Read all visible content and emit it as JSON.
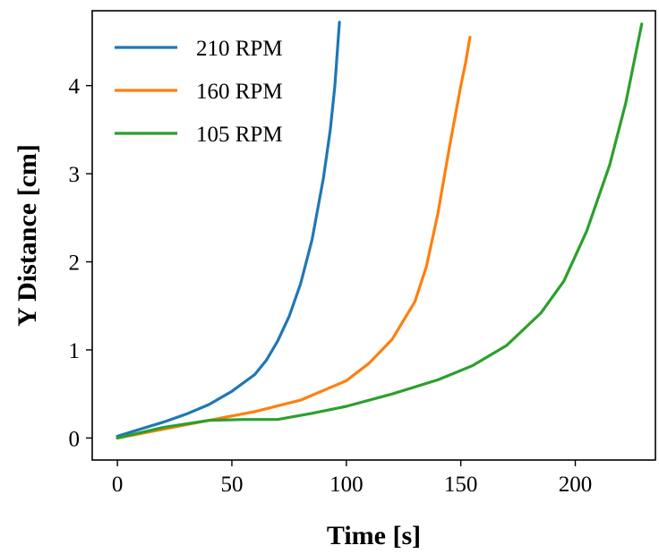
{
  "chart_data": {
    "type": "line",
    "title": "",
    "xlabel": "Time [s]",
    "ylabel": "Y Distance [cm]",
    "xlim": [
      -11,
      235
    ],
    "ylim": [
      -0.25,
      4.85
    ],
    "xticks": [
      0,
      50,
      100,
      150,
      200
    ],
    "yticks": [
      0,
      1,
      2,
      3,
      4
    ],
    "grid": false,
    "legend": "top-left",
    "series": [
      {
        "name": "210 RPM",
        "color": "#1f77b4",
        "x": [
          0,
          10,
          20,
          30,
          40,
          50,
          60,
          65,
          70,
          75,
          80,
          85,
          90,
          93,
          95,
          97
        ],
        "y": [
          0.02,
          0.1,
          0.18,
          0.27,
          0.38,
          0.53,
          0.72,
          0.88,
          1.1,
          1.38,
          1.75,
          2.25,
          2.95,
          3.5,
          4.0,
          4.72
        ]
      },
      {
        "name": "160 RPM",
        "color": "#ff7f0e",
        "x": [
          0,
          20,
          40,
          60,
          80,
          100,
          110,
          120,
          130,
          135,
          140,
          145,
          150,
          152,
          154
        ],
        "y": [
          0.0,
          0.1,
          0.2,
          0.3,
          0.43,
          0.65,
          0.85,
          1.12,
          1.55,
          1.95,
          2.55,
          3.3,
          4.0,
          4.25,
          4.55
        ]
      },
      {
        "name": "105 RPM",
        "color": "#2ca02c",
        "x": [
          0,
          20,
          40,
          55,
          70,
          85,
          100,
          120,
          140,
          155,
          170,
          185,
          195,
          205,
          215,
          222,
          229
        ],
        "y": [
          0.0,
          0.12,
          0.2,
          0.21,
          0.21,
          0.28,
          0.36,
          0.5,
          0.66,
          0.82,
          1.05,
          1.42,
          1.78,
          2.35,
          3.1,
          3.8,
          4.7
        ]
      }
    ]
  }
}
